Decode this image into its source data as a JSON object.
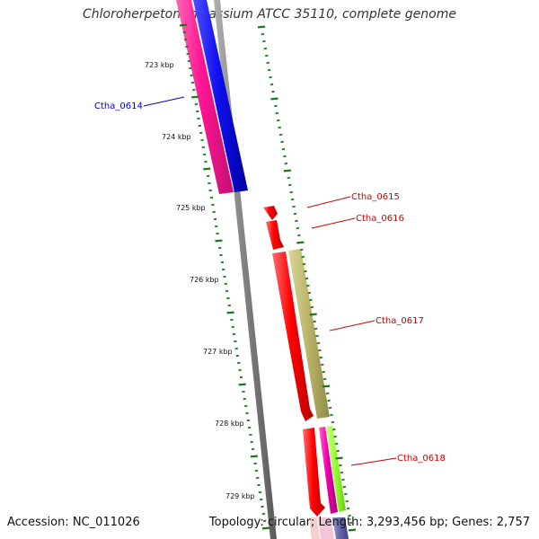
{
  "title": "Chloroherpeton thalassium ATCC 35110, complete genome",
  "footer": {
    "accession": "Accession: NC_011026",
    "summary": "Topology: circular; Length: 3,293,456 bp; Genes: 2,757"
  },
  "colors": {
    "backbone": "#808080",
    "tick": "#1a7a1a",
    "label_blue": "#0000cc",
    "label_red": "#cc0000"
  },
  "tick_labels": [
    "723 kbp",
    "724 kbp",
    "725 kbp",
    "726 kbp",
    "727 kbp",
    "728 kbp",
    "729 kbp"
  ],
  "gene_labels": [
    {
      "text": "Ctha_0614",
      "color": "#0000cc"
    },
    {
      "text": "Ctha_0615",
      "color": "#cc0000"
    },
    {
      "text": "Ctha_0616",
      "color": "#cc0000"
    },
    {
      "text": "Ctha_0617",
      "color": "#cc0000"
    },
    {
      "text": "Ctha_0618",
      "color": "#cc0000"
    }
  ],
  "features": [
    {
      "name": "pink-block-left",
      "color": "#ff1493"
    },
    {
      "name": "blue-block-left",
      "color": "#1010ee"
    },
    {
      "name": "red-arrow-small",
      "color": "#ff0000"
    },
    {
      "name": "red-arrow-mid",
      "color": "#ff0000"
    },
    {
      "name": "red-arrow-long",
      "color": "#ff0000"
    },
    {
      "name": "khaki-block",
      "color": "#bdb76b"
    },
    {
      "name": "red-arrow-bottom",
      "color": "#ff0000"
    },
    {
      "name": "magenta-block",
      "color": "#ee00aa"
    },
    {
      "name": "lime-block",
      "color": "#99ff33"
    },
    {
      "name": "slate-block",
      "color": "#6666aa"
    }
  ]
}
